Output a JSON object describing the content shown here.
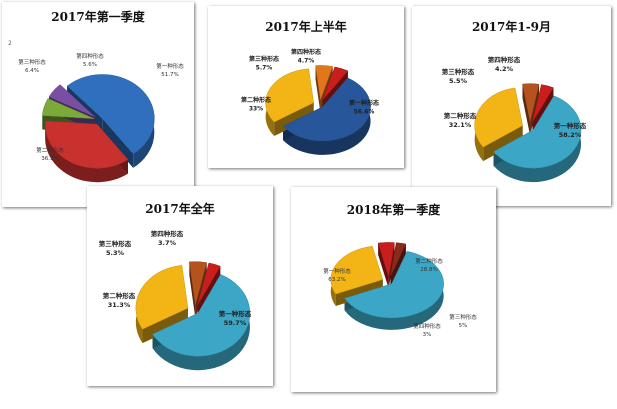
{
  "chart_data": [
    {
      "type": "pie",
      "title": "2017年第一季度",
      "stray_text": "2",
      "slices": [
        {
          "name": "第一种形态",
          "label": "第一种形态",
          "value_label": "51.7%",
          "value": 51.7,
          "color": "#2F6FBE"
        },
        {
          "name": "第二种形态",
          "label": "第二种形态",
          "value_label": "36.3%",
          "value": 36.3,
          "color": "#C8312E"
        },
        {
          "name": "第三种形态",
          "label": "第三种形态",
          "value_label": "6.4%",
          "value": 6.4,
          "color": "#7BAA3A"
        },
        {
          "name": "第四种形态",
          "label": "第四种形态",
          "value_label": "5.6%",
          "value": 5.6,
          "color": "#7A4FA3"
        }
      ]
    },
    {
      "type": "pie",
      "title": "2017年上半年",
      "slices": [
        {
          "name": "第一种形态",
          "label": "第一种形态",
          "value_label": "56.6%",
          "value": 56.6,
          "color": "#27569A"
        },
        {
          "name": "第二种形态",
          "label": "第二种形态",
          "value_label": "33%",
          "value": 33,
          "color": "#F2B515"
        },
        {
          "name": "第三种形态",
          "label": "第三种形态",
          "value_label": "5.7%",
          "value": 5.7,
          "color": "#E2761C"
        },
        {
          "name": "第四种形态",
          "label": "第四种形态",
          "value_label": "4.7%",
          "value": 4.7,
          "color": "#C81E1E"
        }
      ]
    },
    {
      "type": "pie",
      "title": "2017年1-9月",
      "slices": [
        {
          "name": "第一种形态",
          "label": "第一种形态",
          "value_label": "58.2%",
          "value": 58.2,
          "color": "#3BA6C6"
        },
        {
          "name": "第二种形态",
          "label": "第二种形态",
          "value_label": "32.1%",
          "value": 32.1,
          "color": "#F2B515"
        },
        {
          "name": "第三种形态",
          "label": "第三种形态",
          "value_label": "5.5%",
          "value": 5.5,
          "color": "#B5531E"
        },
        {
          "name": "第四种形态",
          "label": "第四种形态",
          "value_label": "4.2%",
          "value": 4.2,
          "color": "#C81E1E"
        }
      ]
    },
    {
      "type": "pie",
      "title": "2017年全年",
      "slices": [
        {
          "name": "第一种形态",
          "label": "第一种形态",
          "value_label": "59.7%",
          "value": 59.7,
          "color": "#3BA6C6"
        },
        {
          "name": "第二种形态",
          "label": "第二种形态",
          "value_label": "31.3%",
          "value": 31.3,
          "color": "#F2B515"
        },
        {
          "name": "第三种形态",
          "label": "第三种形态",
          "value_label": "5.3%",
          "value": 5.3,
          "color": "#B5531E"
        },
        {
          "name": "第四种形态",
          "label": "第四种形态",
          "value_label": "3.7%",
          "value": 3.7,
          "color": "#C81E1E"
        }
      ]
    },
    {
      "type": "pie",
      "title": "2018年第一季度",
      "slices": [
        {
          "name": "第一种形态",
          "label": "第一种形态",
          "value_label": "63.2%",
          "value": 63.2,
          "color": "#3BA6C6"
        },
        {
          "name": "第二种形态",
          "label": "第二种形态",
          "value_label": "28.8%",
          "value": 28.8,
          "color": "#F2B515"
        },
        {
          "name": "第三种形态",
          "label": "第三种形态",
          "value_label": "5%",
          "value": 5,
          "color": "#C81E1E"
        },
        {
          "name": "第四种形态",
          "label": "第四种形态",
          "value_label": "3%",
          "value": 3,
          "color": "#8A2A1A"
        }
      ]
    }
  ]
}
